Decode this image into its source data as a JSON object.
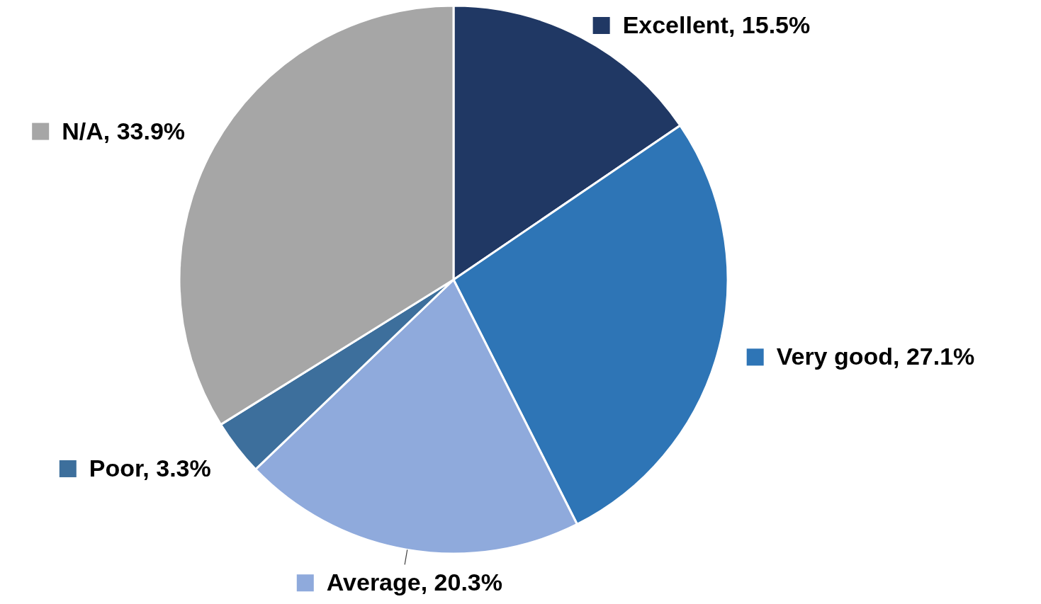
{
  "chart_data": {
    "type": "pie",
    "categories": [
      "Excellent",
      "Very good",
      "Average",
      "Poor",
      "N/A"
    ],
    "values": [
      15.5,
      27.1,
      20.3,
      3.3,
      33.9
    ],
    "value_labels": [
      "15.5%",
      "27.1%",
      "20.3%",
      "3.3%",
      "33.9%"
    ],
    "colors": [
      "#203864",
      "#2e75b6",
      "#8faadc",
      "#3d6f9c",
      "#a6a6a6"
    ],
    "legend": "right"
  }
}
